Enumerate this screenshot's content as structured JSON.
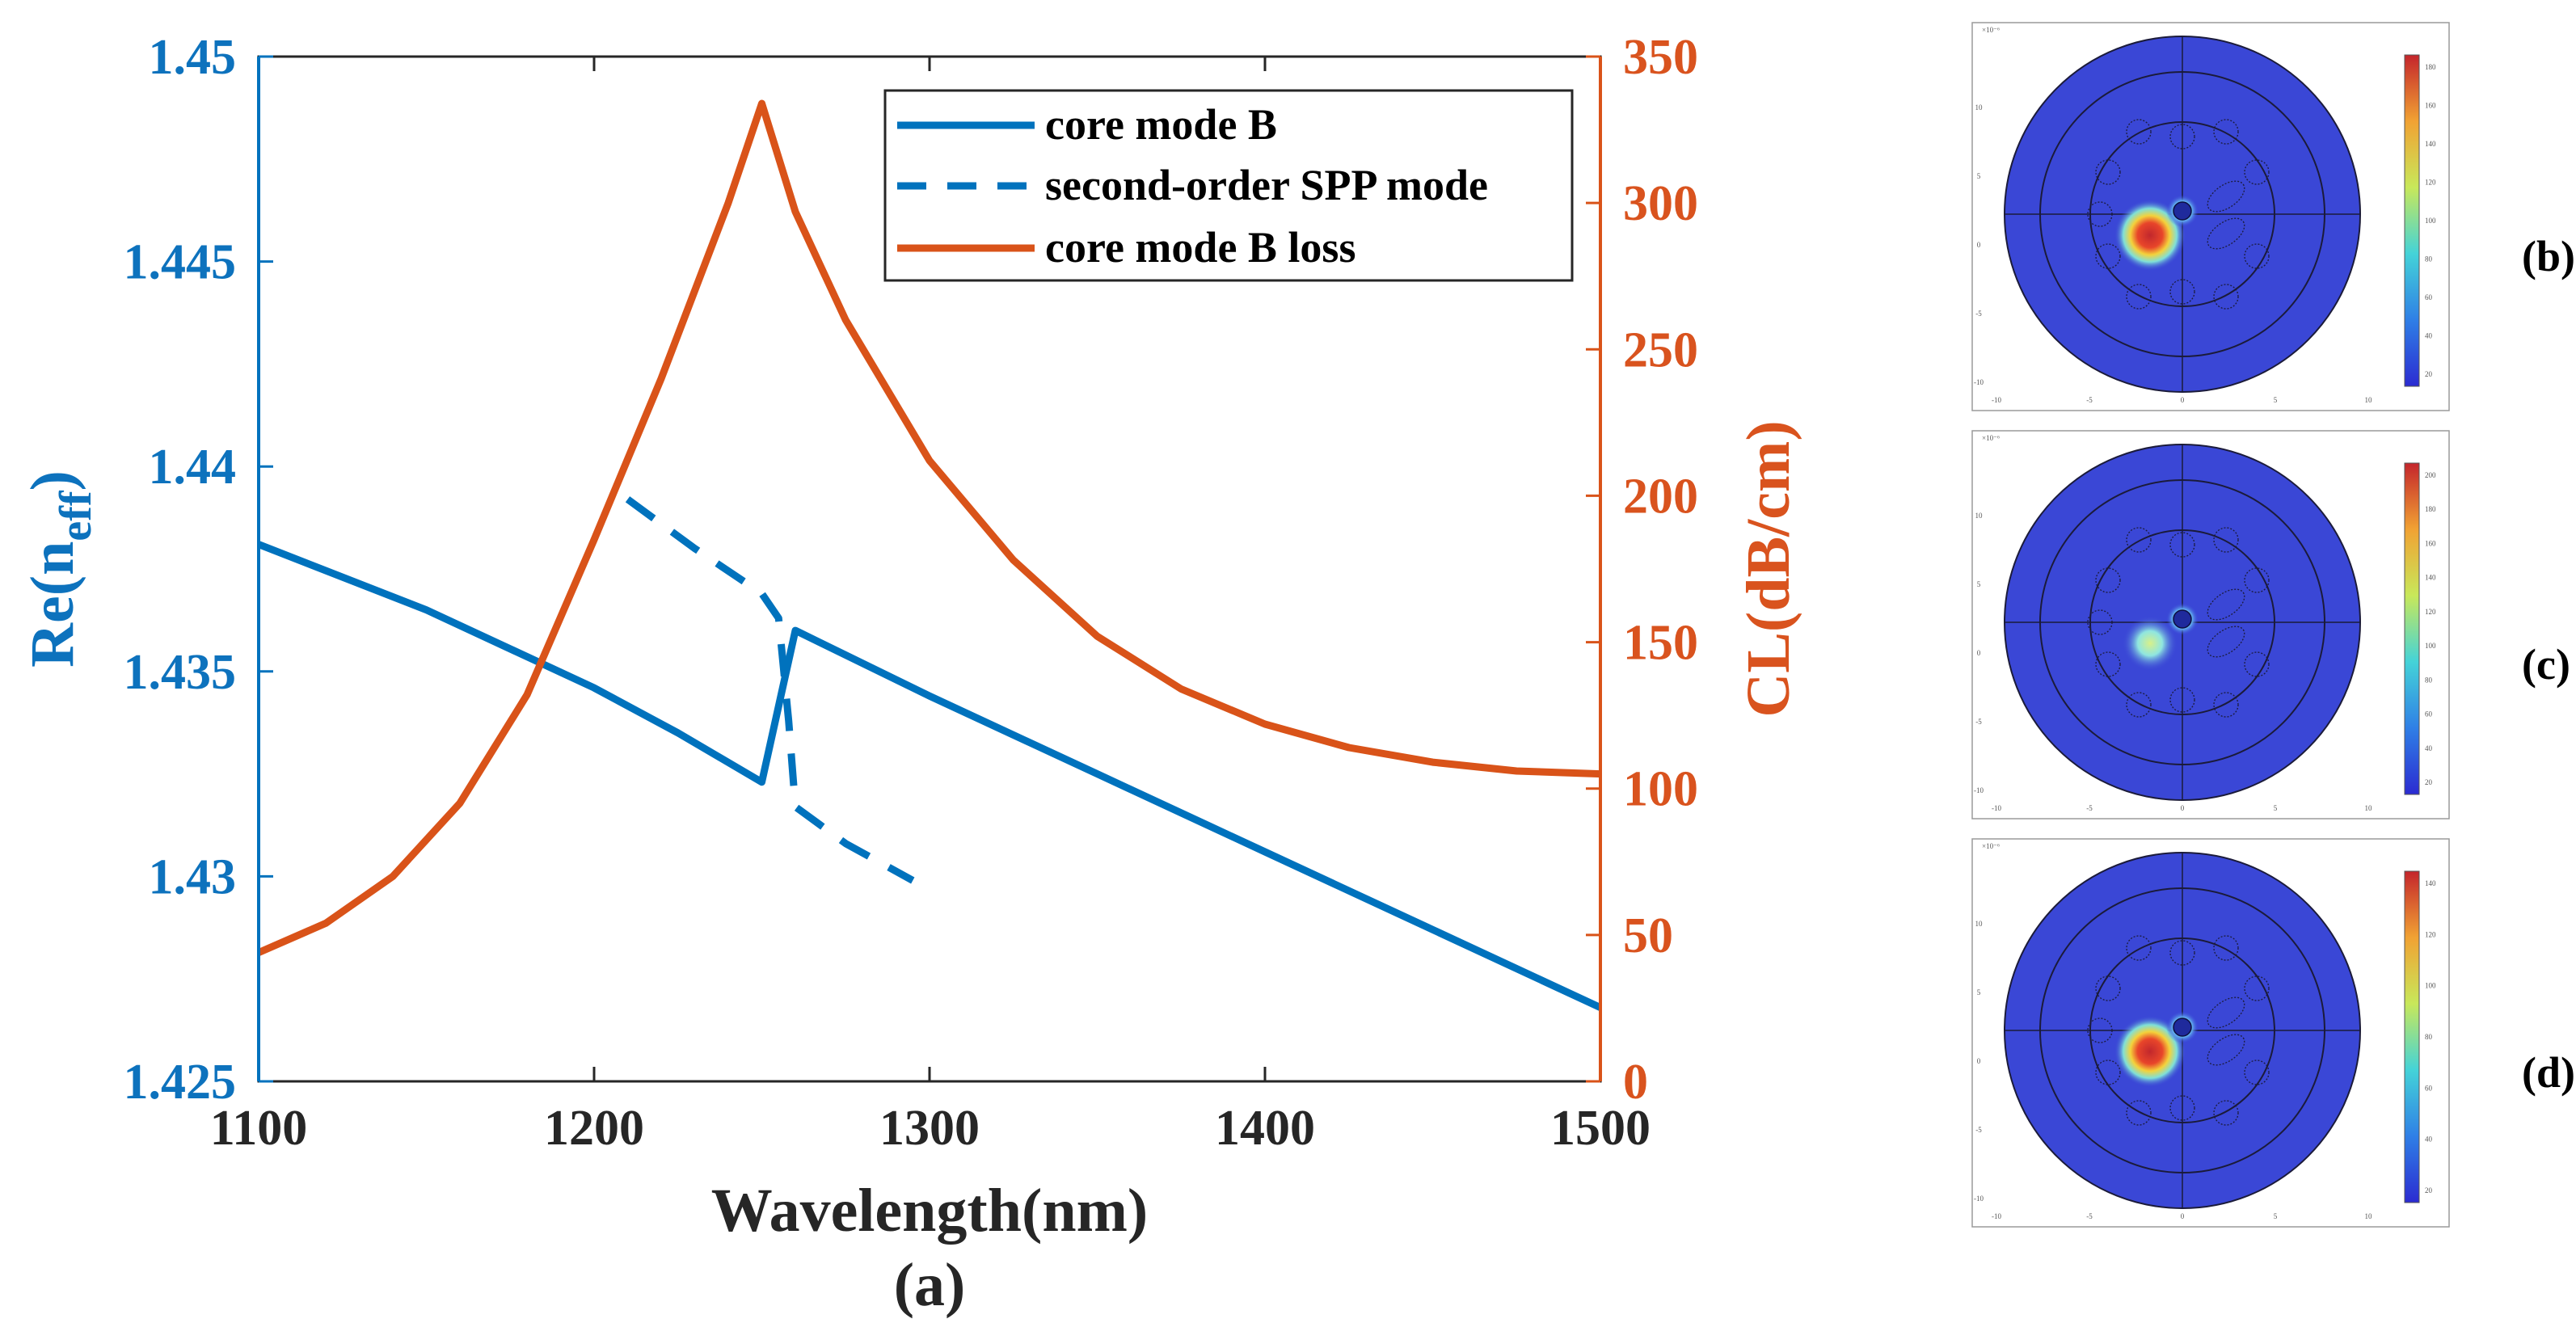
{
  "chart_data": {
    "type": "line",
    "dual_axis": true,
    "xlabel": "Wavelength(nm)",
    "ylabel_left": "Re(n",
    "ylabel_left_sub": "eff",
    "ylabel_left_close": ")",
    "ylabel_right": "CL(dB/cm)",
    "xlim": [
      1100,
      1500
    ],
    "ylim_left": [
      1.425,
      1.45
    ],
    "ylim_right": [
      0,
      350
    ],
    "xticks": [
      "1100",
      "1200",
      "1300",
      "1400",
      "1500"
    ],
    "yticks_left": [
      "1.425",
      "1.43",
      "1.435",
      "1.44",
      "1.445",
      "1.45"
    ],
    "yticks_right": [
      "0",
      "50",
      "100",
      "150",
      "200",
      "250",
      "300",
      "350"
    ],
    "grid": false,
    "legend_position": "top-right",
    "series": [
      {
        "name": "core mode B",
        "axis": "left",
        "style": "solid",
        "color": "#0072BD",
        "points": [
          [
            1100,
            1.4381
          ],
          [
            1150,
            1.4365
          ],
          [
            1200,
            1.4346
          ],
          [
            1225,
            1.4335
          ],
          [
            1250,
            1.4323
          ],
          [
            1260,
            1.436
          ],
          [
            1300,
            1.4344
          ],
          [
            1350,
            1.4325
          ],
          [
            1400,
            1.4306
          ],
          [
            1450,
            1.4287
          ],
          [
            1500,
            1.4268
          ]
        ]
      },
      {
        "name": "second-order SPP mode",
        "axis": "left",
        "style": "dashed",
        "color": "#0072BD",
        "points": [
          [
            1210,
            1.4392
          ],
          [
            1230,
            1.438
          ],
          [
            1250,
            1.4369
          ],
          [
            1255,
            1.4363
          ],
          [
            1258,
            1.4338
          ],
          [
            1260,
            1.4317
          ],
          [
            1275,
            1.4308
          ],
          [
            1295,
            1.4299
          ]
        ]
      },
      {
        "name": "core mode B loss",
        "axis": "right",
        "style": "solid",
        "color": "#D95319",
        "points": [
          [
            1100,
            44
          ],
          [
            1120,
            54
          ],
          [
            1140,
            70
          ],
          [
            1160,
            95
          ],
          [
            1180,
            132
          ],
          [
            1200,
            185
          ],
          [
            1220,
            240
          ],
          [
            1240,
            300
          ],
          [
            1250,
            334
          ],
          [
            1260,
            297
          ],
          [
            1275,
            260
          ],
          [
            1300,
            212
          ],
          [
            1325,
            178
          ],
          [
            1350,
            152
          ],
          [
            1375,
            134
          ],
          [
            1400,
            122
          ],
          [
            1425,
            114
          ],
          [
            1450,
            109
          ],
          [
            1475,
            106
          ],
          [
            1500,
            105
          ]
        ]
      }
    ]
  },
  "panels": {
    "a": "(a)",
    "b": "(b)",
    "c": "(c)",
    "d": "(d)"
  },
  "insets": {
    "exponent_label": "×10⁻⁶",
    "xticks": [
      "-10",
      "-5",
      "0",
      "5",
      "10"
    ],
    "yticks": [
      "-10",
      "-5",
      "0",
      "5",
      "10"
    ],
    "colorbar_b": [
      "180",
      "160",
      "140",
      "120",
      "100",
      "80",
      "60",
      "40",
      "20"
    ],
    "colorbar_c": [
      "200",
      "180",
      "160",
      "140",
      "120",
      "100",
      "80",
      "60",
      "40",
      "20"
    ],
    "colorbar_d": [
      "140",
      "120",
      "100",
      "80",
      "60",
      "40",
      "20"
    ]
  },
  "colors": {
    "blue": "#0072BD",
    "orange": "#D95319",
    "field_background": "#3a47d6"
  }
}
